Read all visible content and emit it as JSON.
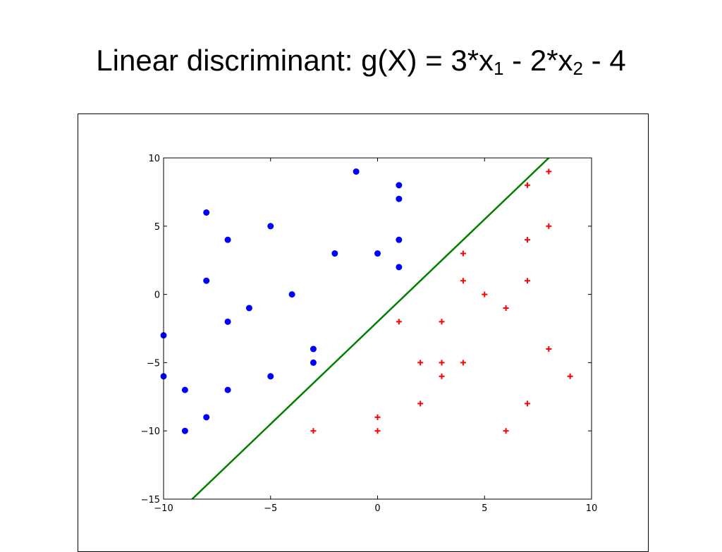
{
  "slide": {
    "title_main": "Linear discriminant: g(X) = 3*x",
    "title_sub1": "1",
    "title_mid": " - 2*x",
    "title_sub2": "2",
    "title_end": " - 4"
  },
  "chart_data": {
    "type": "scatter",
    "xlim": [
      -10,
      10
    ],
    "ylim": [
      -15,
      10
    ],
    "xticks": [
      -10,
      -5,
      0,
      5,
      10
    ],
    "yticks": [
      -15,
      -10,
      -5,
      0,
      5,
      10
    ],
    "xtick_labels": [
      "−10",
      "−5",
      "0",
      "5",
      "10"
    ],
    "ytick_labels": [
      "−15",
      "−10",
      "−5",
      "0",
      "5",
      "10"
    ],
    "grid": false,
    "series": [
      {
        "marker": "circle",
        "color": "#0000ff",
        "points": [
          [
            -10,
            -3
          ],
          [
            -10,
            -6
          ],
          [
            -9,
            -7
          ],
          [
            -9,
            -10
          ],
          [
            -8,
            6
          ],
          [
            -8,
            1
          ],
          [
            -8,
            -9
          ],
          [
            -7,
            4
          ],
          [
            -7,
            -2
          ],
          [
            -7,
            -7
          ],
          [
            -6,
            -1
          ],
          [
            -5,
            5
          ],
          [
            -5,
            -6
          ],
          [
            -4,
            0
          ],
          [
            -3,
            -4
          ],
          [
            -3,
            -5
          ],
          [
            -2,
            3
          ],
          [
            -1,
            9
          ],
          [
            0,
            3
          ],
          [
            1,
            8
          ],
          [
            1,
            7
          ],
          [
            1,
            4
          ],
          [
            1,
            2
          ]
        ]
      },
      {
        "marker": "plus",
        "color": "#ff0000",
        "points": [
          [
            8,
            9
          ],
          [
            7,
            8
          ],
          [
            8,
            5
          ],
          [
            7,
            4
          ],
          [
            4,
            3
          ],
          [
            4,
            1
          ],
          [
            7,
            1
          ],
          [
            5,
            0
          ],
          [
            6,
            -1
          ],
          [
            1,
            -2
          ],
          [
            3,
            -2
          ],
          [
            8,
            -4
          ],
          [
            2,
            -5
          ],
          [
            3,
            -5
          ],
          [
            4,
            -5
          ],
          [
            3,
            -6
          ],
          [
            9,
            -6
          ],
          [
            2,
            -8
          ],
          [
            7,
            -8
          ],
          [
            0,
            -9
          ],
          [
            -3,
            -10
          ],
          [
            0,
            -10
          ],
          [
            6,
            -10
          ]
        ]
      }
    ],
    "line": {
      "color": "#008000",
      "equation": "3*x1 - 2*x2 - 4 = 0",
      "slope": 1.5,
      "intercept": -2
    }
  }
}
